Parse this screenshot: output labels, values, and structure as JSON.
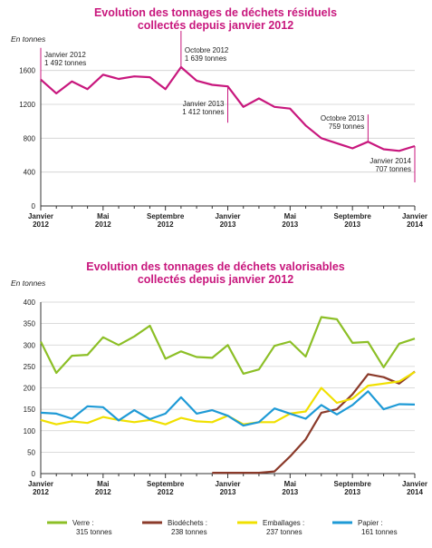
{
  "chart_data": [
    {
      "type": "line",
      "title": [
        "Evolution des tonnages de déchets résiduels",
        "collectés depuis janvier 2012"
      ],
      "y_label": "En tonnes",
      "categories": [
        "Janvier 2012",
        null,
        null,
        null,
        "Mai 2012",
        null,
        null,
        null,
        "Septembre 2012",
        null,
        null,
        null,
        "Janvier 2013",
        null,
        null,
        null,
        "Mai 2013",
        null,
        null,
        null,
        "Septembre 2013",
        null,
        null,
        null,
        "Janvier 2014"
      ],
      "ylim": [
        0,
        1800
      ],
      "yticks": [
        0,
        400,
        800,
        1200,
        1600
      ],
      "grid": true,
      "series": [
        {
          "name": null,
          "color": "#c8177d",
          "values": [
            1492,
            1330,
            1470,
            1380,
            1550,
            1500,
            1530,
            1520,
            1380,
            1639,
            1480,
            1430,
            1412,
            1170,
            1270,
            1170,
            1150,
            950,
            800,
            740,
            680,
            759,
            670,
            650,
            707
          ],
          "value_labels": [
            [
              "Janvier 2012",
              "1 492 tonnes"
            ],
            null,
            null,
            null,
            null,
            null,
            null,
            null,
            null,
            [
              "Octobre 2012",
              "1 639 tonnes"
            ],
            null,
            null,
            [
              "Janvier 2013",
              "1 412 tonnes"
            ],
            null,
            null,
            null,
            null,
            null,
            null,
            null,
            null,
            [
              "Octobre 2013",
              "759 tonnes"
            ],
            null,
            null,
            [
              "Janvier 2014",
              "707 tonnes"
            ]
          ]
        }
      ]
    },
    {
      "type": "line",
      "title": [
        "Evolution des tonnages de déchets valorisables",
        "collectés depuis janvier 2012"
      ],
      "y_label": "En tonnes",
      "categories": [
        "Janvier 2012",
        null,
        null,
        null,
        "Mai 2012",
        null,
        null,
        null,
        "Septembre 2012",
        null,
        null,
        null,
        "Janvier 2013",
        null,
        null,
        null,
        "Mai 2013",
        null,
        null,
        null,
        "Septembre 2013",
        null,
        null,
        null,
        "Janvier 2014"
      ],
      "ylim": [
        0,
        400
      ],
      "yticks": [
        0,
        50,
        100,
        150,
        200,
        250,
        300,
        350,
        400
      ],
      "grid": true,
      "series": [
        {
          "name": "Verre :",
          "total_label": "315 tonnes",
          "color": "#8cbf26",
          "values": [
            308,
            235,
            275,
            277,
            318,
            300,
            320,
            345,
            268,
            285,
            272,
            270,
            300,
            233,
            243,
            298,
            308,
            273,
            365,
            360,
            305,
            307,
            248,
            303,
            315
          ]
        },
        {
          "name": "Biodéchets :",
          "total_label": "238 tonnes",
          "color": "#8b3a2a",
          "values": [
            null,
            null,
            null,
            null,
            null,
            null,
            null,
            null,
            null,
            null,
            null,
            2,
            2,
            2,
            2,
            5,
            40,
            80,
            142,
            150,
            185,
            232,
            225,
            210,
            238
          ]
        },
        {
          "name": "Emballages :",
          "total_label": "237 tonnes",
          "color": "#f0e000",
          "values": [
            125,
            115,
            122,
            118,
            132,
            125,
            120,
            125,
            115,
            130,
            122,
            120,
            135,
            115,
            120,
            120,
            140,
            145,
            200,
            165,
            175,
            205,
            210,
            215,
            237
          ]
        },
        {
          "name": "Papier :",
          "total_label": "161 tonnes",
          "color": "#1e9ad6",
          "values": [
            142,
            140,
            128,
            157,
            155,
            124,
            148,
            127,
            140,
            178,
            140,
            148,
            135,
            112,
            120,
            152,
            140,
            128,
            160,
            138,
            160,
            192,
            150,
            162,
            161
          ]
        }
      ]
    }
  ]
}
